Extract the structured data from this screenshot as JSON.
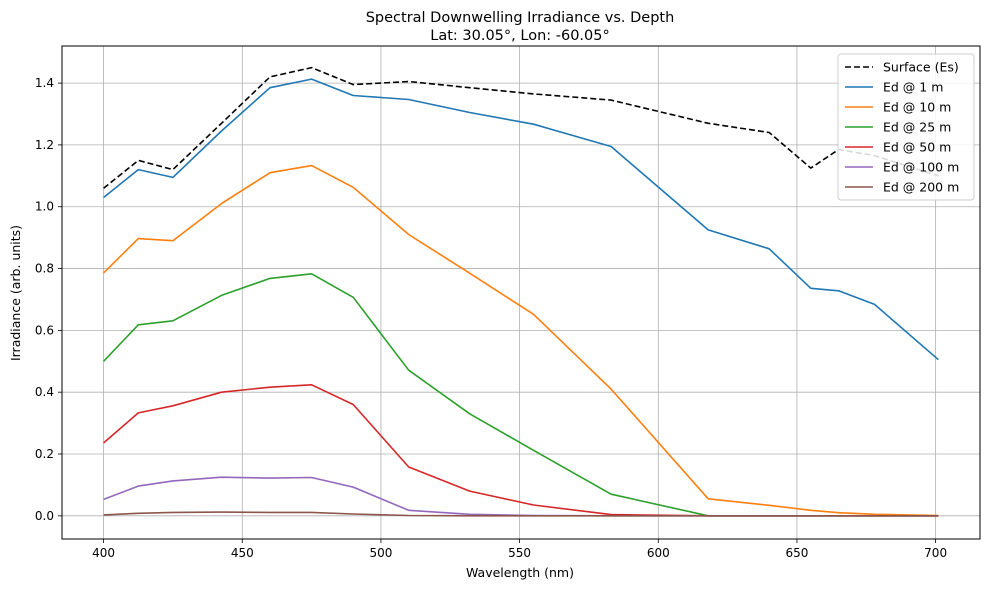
{
  "chart_data": {
    "type": "line",
    "title": "Spectral Downwelling Irradiance vs. Depth",
    "subtitle": "Lat: 30.05°, Lon: -60.05°",
    "xlabel": "Wavelength (nm)",
    "ylabel": "Irradiance (arb. units)",
    "xlim": [
      385,
      716
    ],
    "ylim": [
      -0.075,
      1.52
    ],
    "xticks": [
      400,
      450,
      500,
      550,
      600,
      650,
      700
    ],
    "xtick_labels": [
      "400",
      "450",
      "500",
      "550",
      "600",
      "650",
      "700"
    ],
    "yticks": [
      0.0,
      0.2,
      0.4,
      0.6,
      0.8,
      1.0,
      1.2,
      1.4
    ],
    "ytick_labels": [
      "0.0",
      "0.2",
      "0.4",
      "0.6",
      "0.8",
      "1.0",
      "1.2",
      "1.4"
    ],
    "grid": true,
    "legend_position": "top-right",
    "series": [
      {
        "name": "Surface (Es)",
        "color": "#000000",
        "dash": "dashed",
        "x": [
          400,
          412.5,
          425,
          442.5,
          460,
          475,
          490,
          510,
          532,
          555,
          583,
          618,
          640,
          655,
          665,
          678,
          701
        ],
        "values": [
          1.06,
          1.15,
          1.12,
          1.27,
          1.42,
          1.45,
          1.395,
          1.405,
          1.385,
          1.365,
          1.345,
          1.27,
          1.24,
          1.125,
          1.185,
          1.165,
          1.1
        ]
      },
      {
        "name": "Ed @ 1 m",
        "color": "#1f77b4",
        "dash": "solid",
        "x": [
          400,
          412.5,
          425,
          442.5,
          460,
          475,
          490,
          510,
          532,
          555,
          583,
          618,
          640,
          655,
          665,
          678,
          701
        ],
        "values": [
          1.03,
          1.12,
          1.095,
          1.245,
          1.385,
          1.413,
          1.36,
          1.347,
          1.305,
          1.267,
          1.195,
          0.925,
          0.864,
          0.736,
          0.728,
          0.684,
          0.505
        ]
      },
      {
        "name": "Ed @ 10 m",
        "color": "#ff7f0e",
        "dash": "solid",
        "x": [
          400,
          412.5,
          425,
          442.5,
          460,
          475,
          490,
          510,
          532,
          555,
          583,
          618,
          640,
          655,
          665,
          678,
          701
        ],
        "values": [
          0.786,
          0.897,
          0.89,
          1.01,
          1.11,
          1.133,
          1.063,
          0.91,
          0.785,
          0.652,
          0.41,
          0.055,
          0.034,
          0.018,
          0.01,
          0.005,
          0.001
        ]
      },
      {
        "name": "Ed @ 25 m",
        "color": "#2ca02c",
        "dash": "solid",
        "x": [
          400,
          412.5,
          425,
          442.5,
          460,
          475,
          490,
          510,
          532,
          555,
          583,
          618,
          640,
          655,
          665,
          678,
          701
        ],
        "values": [
          0.5,
          0.618,
          0.631,
          0.713,
          0.768,
          0.783,
          0.707,
          0.471,
          0.33,
          0.212,
          0.07,
          0.0,
          0.0,
          0.0,
          0.0,
          0.0,
          0.0
        ]
      },
      {
        "name": "Ed @ 50 m",
        "color": "#d62728",
        "dash": "solid",
        "x": [
          400,
          412.5,
          425,
          442.5,
          460,
          475,
          490,
          510,
          532,
          555,
          583,
          618,
          640,
          655,
          665,
          678,
          701
        ],
        "values": [
          0.236,
          0.333,
          0.356,
          0.4,
          0.416,
          0.424,
          0.36,
          0.158,
          0.08,
          0.035,
          0.004,
          0.0,
          0.0,
          0.0,
          0.0,
          0.0,
          0.0
        ]
      },
      {
        "name": "Ed @ 100 m",
        "color": "#9467bd",
        "dash": "solid",
        "x": [
          400,
          412.5,
          425,
          442.5,
          460,
          475,
          490,
          510,
          532,
          555,
          583,
          618,
          640,
          655,
          665,
          678,
          701
        ],
        "values": [
          0.053,
          0.096,
          0.113,
          0.125,
          0.122,
          0.124,
          0.093,
          0.018,
          0.005,
          0.001,
          0.0,
          0.0,
          0.0,
          0.0,
          0.0,
          0.0,
          0.0
        ]
      },
      {
        "name": "Ed @ 200 m",
        "color": "#8c564b",
        "dash": "solid",
        "x": [
          400,
          412.5,
          425,
          442.5,
          460,
          475,
          490,
          510,
          532,
          555,
          583,
          618,
          640,
          655,
          665,
          678,
          701
        ],
        "values": [
          0.003,
          0.008,
          0.011,
          0.012,
          0.011,
          0.011,
          0.006,
          0.001,
          0.0,
          0.0,
          0.0,
          0.0,
          0.0,
          0.0,
          0.0,
          0.0,
          0.0
        ]
      }
    ]
  }
}
